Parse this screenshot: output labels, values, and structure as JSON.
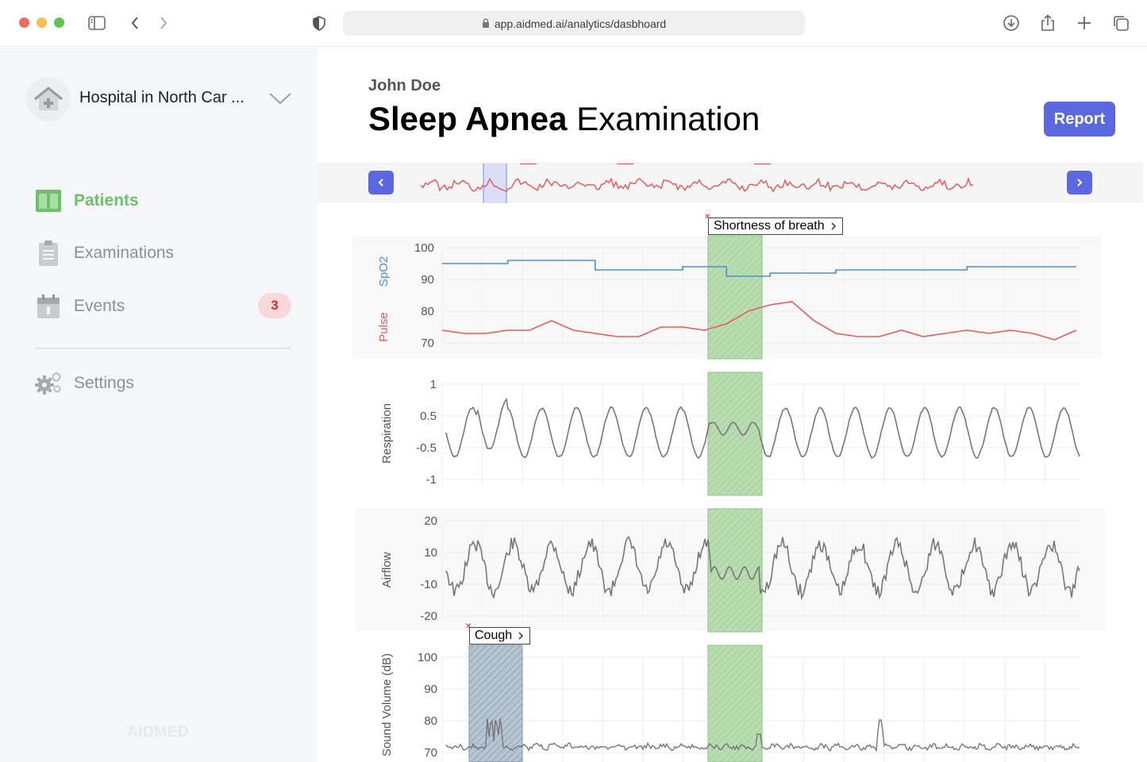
{
  "browser": {
    "url": "app.aidmed.ai/analytics/dasbhoard"
  },
  "sidebar": {
    "hospital": "Hospital in North Car ...",
    "nav": [
      {
        "label": "Patients",
        "icon": "columns-icon",
        "active": true
      },
      {
        "label": "Examinations",
        "icon": "clipboard-icon",
        "active": false
      },
      {
        "label": "Events",
        "icon": "calendar-icon",
        "active": false,
        "badge": "3"
      },
      {
        "label": "Settings",
        "icon": "gears-icon",
        "active": false
      }
    ],
    "brand": "AIDMED"
  },
  "header": {
    "patient": "John Doe",
    "title_bold": "Sleep Apnea",
    "title_rest": "Examination",
    "report_button": "Report"
  },
  "events": {
    "shortness_of_breath": "Shortness of breath",
    "cough": "Cough"
  },
  "colors": {
    "accent": "#5c68e0",
    "active_nav": "#6fc06b",
    "badge_text": "#d52b2b",
    "spo2": "#4a90d9",
    "pulse": "#e85c5c",
    "event_highlight": "#a9d5a1",
    "cough_highlight": "#a6b8c9"
  },
  "chart_data": [
    {
      "type": "line",
      "panel": "spo2-pulse",
      "yticks": [
        100,
        90,
        80,
        70
      ],
      "ylim": [
        65,
        103
      ],
      "series": [
        {
          "name": "SpO2",
          "values": [
            95,
            95,
            95,
            96,
            96,
            96,
            96,
            93,
            93,
            93,
            93,
            94,
            94,
            91,
            91,
            92,
            92,
            92,
            93,
            93,
            93,
            93,
            93,
            93,
            94,
            94,
            94,
            94,
            94,
            94
          ]
        },
        {
          "name": "Pulse",
          "values": [
            74,
            73,
            73,
            74,
            74,
            77,
            74,
            73,
            72,
            72,
            75,
            75,
            74,
            76,
            80,
            82,
            83,
            77,
            73,
            72,
            72,
            74,
            72,
            73,
            74,
            73,
            74,
            73,
            71,
            74
          ]
        }
      ]
    },
    {
      "type": "line",
      "panel": "respiration",
      "ylabel": "Respiration",
      "yticks": [
        "1",
        "0.5",
        "-0.5",
        "-1"
      ]
    },
    {
      "type": "line",
      "panel": "airflow",
      "ylabel": "Airflow",
      "yticks": [
        "20",
        "10",
        "-10",
        "-20"
      ]
    },
    {
      "type": "line",
      "panel": "sound-volume",
      "ylabel": "Sound Volume (dB)",
      "yticks": [
        "100",
        "90",
        "80",
        "70"
      ]
    }
  ]
}
